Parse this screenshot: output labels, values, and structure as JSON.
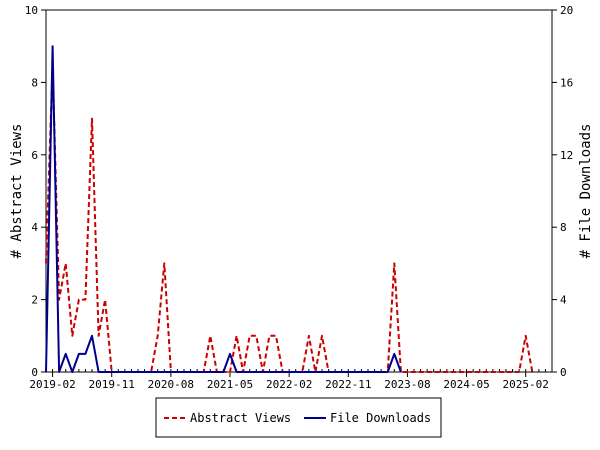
{
  "chart_data": {
    "type": "line",
    "x_tick_labels": [
      "2019-02",
      "2019-11",
      "2020-08",
      "2021-05",
      "2022-02",
      "2022-11",
      "2023-08",
      "2024-05",
      "2025-02"
    ],
    "y_left": {
      "label": "# Abstract Views",
      "ylim": [
        0,
        10
      ],
      "ticks": [
        "0",
        "2",
        "4",
        "6",
        "8",
        "10"
      ]
    },
    "y_right": {
      "label": "# File Downloads",
      "ylim": [
        0,
        20
      ],
      "ticks": [
        "0",
        "4",
        "8",
        "12",
        "16",
        "20"
      ]
    },
    "legend_position": "bottom-center",
    "grid": false,
    "series": [
      {
        "name": "Abstract Views",
        "axis": "left",
        "color": "#cc0000",
        "style": "dashed",
        "points": [
          [
            "2019-01",
            3
          ],
          [
            "2019-02",
            8.5
          ],
          [
            "2019-03",
            2
          ],
          [
            "2019-04",
            3
          ],
          [
            "2019-05",
            1
          ],
          [
            "2019-06",
            2
          ],
          [
            "2019-07",
            2
          ],
          [
            "2019-08",
            7
          ],
          [
            "2019-09",
            1
          ],
          [
            "2019-10",
            2
          ],
          [
            "2019-11",
            0
          ],
          [
            "2020-05",
            0
          ],
          [
            "2020-06",
            1
          ],
          [
            "2020-07",
            3
          ],
          [
            "2020-08",
            0
          ],
          [
            "2021-01",
            0
          ],
          [
            "2021-02",
            1
          ],
          [
            "2021-03",
            0
          ],
          [
            "2021-05",
            0
          ],
          [
            "2021-06",
            1
          ],
          [
            "2021-07",
            0
          ],
          [
            "2021-08",
            1
          ],
          [
            "2021-09",
            1
          ],
          [
            "2021-10",
            0
          ],
          [
            "2021-11",
            1
          ],
          [
            "2021-12",
            1
          ],
          [
            "2022-01",
            0
          ],
          [
            "2022-04",
            0
          ],
          [
            "2022-05",
            1
          ],
          [
            "2022-06",
            0
          ],
          [
            "2022-07",
            1
          ],
          [
            "2022-08",
            0
          ],
          [
            "2023-05",
            0
          ],
          [
            "2023-06",
            3
          ],
          [
            "2023-07",
            0
          ],
          [
            "2025-01",
            0
          ],
          [
            "2025-02",
            1
          ],
          [
            "2025-03",
            0
          ]
        ]
      },
      {
        "name": "File Downloads",
        "axis": "right",
        "color": "#00008b",
        "style": "solid",
        "points": [
          [
            "2019-01",
            0
          ],
          [
            "2019-02",
            18
          ],
          [
            "2019-03",
            0
          ],
          [
            "2019-04",
            1
          ],
          [
            "2019-05",
            0
          ],
          [
            "2019-06",
            1
          ],
          [
            "2019-07",
            1
          ],
          [
            "2019-08",
            2
          ],
          [
            "2019-09",
            0
          ],
          [
            "2021-04",
            0
          ],
          [
            "2021-05",
            1
          ],
          [
            "2021-06",
            0
          ],
          [
            "2023-05",
            0
          ],
          [
            "2023-06",
            1
          ],
          [
            "2023-07",
            0
          ]
        ]
      }
    ],
    "x_range": [
      "2019-01",
      "2025-06"
    ]
  }
}
